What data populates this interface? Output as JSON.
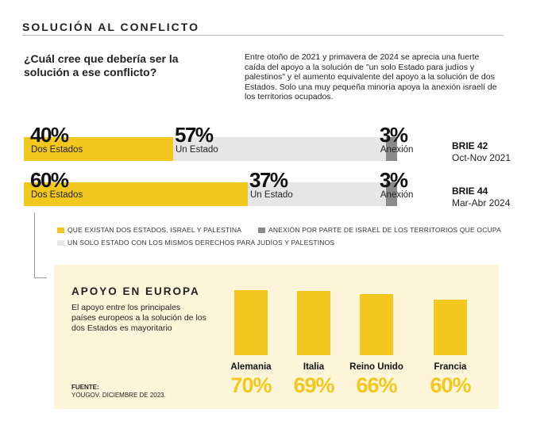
{
  "header": {
    "section_title": "SOLUCIÓN AL CONFLICTO",
    "question": "¿Cuál cree que debería ser la solución a ese conflicto?",
    "intro": "Entre otoño de 2021 y primavera de 2024 se aprecia una fuerte caída del apoyo a la solución de \"un solo Estado para judíos y palestinos\" y el aumento equivalente del apoyo a la solución de dos Estados. Solo una muy pequeña minoría apoya la anexión israelí de los territorios ocupados."
  },
  "colors": {
    "two_states": "#f2c81e",
    "one_state": "#e6e6e6",
    "annexation": "#8a8a8a",
    "europe_bg": "#fdf5d9"
  },
  "chart_data": [
    {
      "type": "bar",
      "stacked": true,
      "orientation": "horizontal",
      "categories": [
        "BRIE 42",
        "BRIE 44"
      ],
      "category_dates": [
        "Oct-Nov 2021",
        "Mar-Abr 2024"
      ],
      "series": [
        {
          "name": "QUE EXISTAN DOS ESTADOS, ISRAEL Y PALESTINA",
          "short_label": "Dos Estados",
          "values": [
            40,
            60
          ],
          "labels": [
            "40%",
            "60%"
          ]
        },
        {
          "name": "UN SOLO ESTADO CON LOS MISMOS DERECHOS PARA JUDÍOS Y PALESTINOS",
          "short_label": "Un Estado",
          "values": [
            57,
            37
          ],
          "labels": [
            "57%",
            "37%"
          ]
        },
        {
          "name": "ANEXIÓN POR PARTE DE ISRAEL DE LOS TERRITORIOS QUE OCUPA",
          "short_label": "Anexión",
          "values": [
            3,
            3
          ],
          "labels": [
            "3%",
            "3%"
          ]
        }
      ],
      "legend": [
        "QUE EXISTAN DOS ESTADOS, ISRAEL Y PALESTINA",
        "ANEXIÓN POR PARTE DE ISRAEL DE LOS TERRITORIOS QUE OCUPA",
        "UN SOLO ESTADO CON LOS MISMOS DERECHOS PARA JUDÍOS Y PALESTINOS"
      ]
    },
    {
      "type": "bar",
      "title": "APOYO EN EUROPA",
      "description": "El apoyo entre los principales países europeos a la solución de los dos Estados es mayoritario",
      "categories": [
        "Alemania",
        "Italia",
        "Reino Unido",
        "Francia"
      ],
      "values": [
        70,
        69,
        66,
        60
      ],
      "labels": [
        "70%",
        "69%",
        "66%",
        "60%"
      ],
      "ylim": [
        0,
        70
      ],
      "source_label": "FUENTE:",
      "source": "YOUGOV. DICIEMBRE DE 2023."
    }
  ]
}
